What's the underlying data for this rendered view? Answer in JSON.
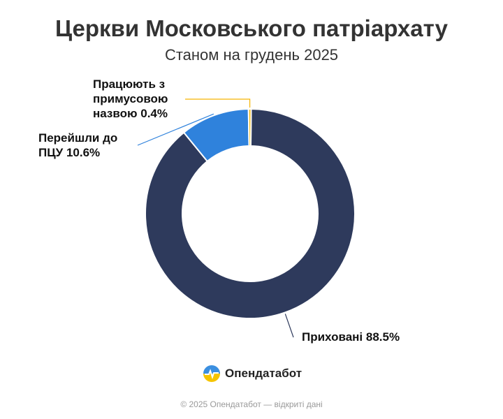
{
  "chart_data": {
    "type": "donut",
    "title": "Церкви Московського патріархату",
    "subtitle": "Станом на грудень 2025",
    "categories": [
      "Приховані",
      "Перейшли до ПЦУ",
      "Працюють з примусовою назвою"
    ],
    "values": [
      88.5,
      10.6,
      0.4
    ],
    "value_labels": [
      "88.5%",
      "10.6%",
      "0.4%"
    ],
    "colors": [
      "#2e3a5c",
      "#2f82dc",
      "#f5b400"
    ]
  },
  "logo_text": "Опендатабот",
  "footer": "© 2025 Опендатабот — відкриті дані"
}
